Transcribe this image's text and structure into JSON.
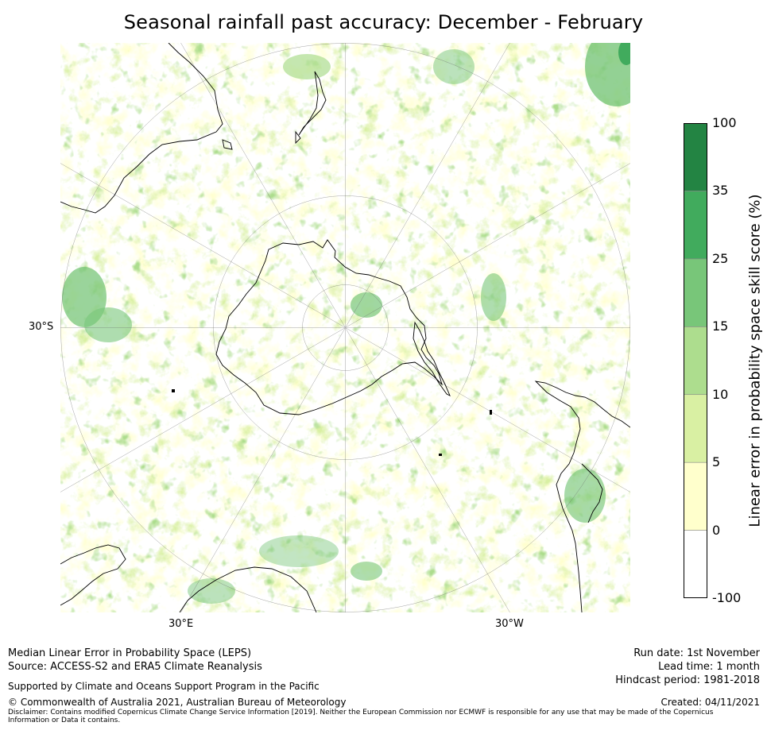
{
  "title": "Seasonal rainfall past accuracy: December - February",
  "map": {
    "projection": "south-polar stereographic",
    "lat_labels": [
      "30°S"
    ],
    "lon_labels": [
      "30°E",
      "30°W"
    ]
  },
  "colorbar": {
    "label": "Linear error in probability space skill score (%)",
    "ticks": [
      "-100",
      "0",
      "5",
      "10",
      "15",
      "25",
      "35",
      "100"
    ],
    "bins": [
      {
        "range": "-100 to 0",
        "color": "#ffffff"
      },
      {
        "range": "0 to 5",
        "color": "#ffffcc"
      },
      {
        "range": "5 to 10",
        "color": "#d9f0a3"
      },
      {
        "range": "10 to 15",
        "color": "#addd8e"
      },
      {
        "range": "15 to 25",
        "color": "#78c679"
      },
      {
        "range": "25 to 35",
        "color": "#41ab5d"
      },
      {
        "range": "35 to 100",
        "color": "#238443"
      }
    ]
  },
  "footer": {
    "method": "Median Linear Error in Probability Space (LEPS)",
    "source": "Source: ACCESS-S2 and ERA5 Climate Reanalysis",
    "support": "Supported by Climate and Oceans Support Program in the Pacific",
    "copyright": "© Commonwealth of Australia 2021, Australian Bureau of Meteorology",
    "disclaimer_line1": "Disclaimer: Contains modified Copernicus Climate Change Service Information [2019]. Neither the European Commission nor ECMWF is responsible for any use that may be made of the Copernicus",
    "disclaimer_line2": "Information or Data it contains.",
    "run_date": "Run date: 1st November",
    "lead_time": "Lead time: 1 month",
    "hindcast": "Hindcast period: 1981-2018",
    "created": "Created: 04/11/2021"
  }
}
